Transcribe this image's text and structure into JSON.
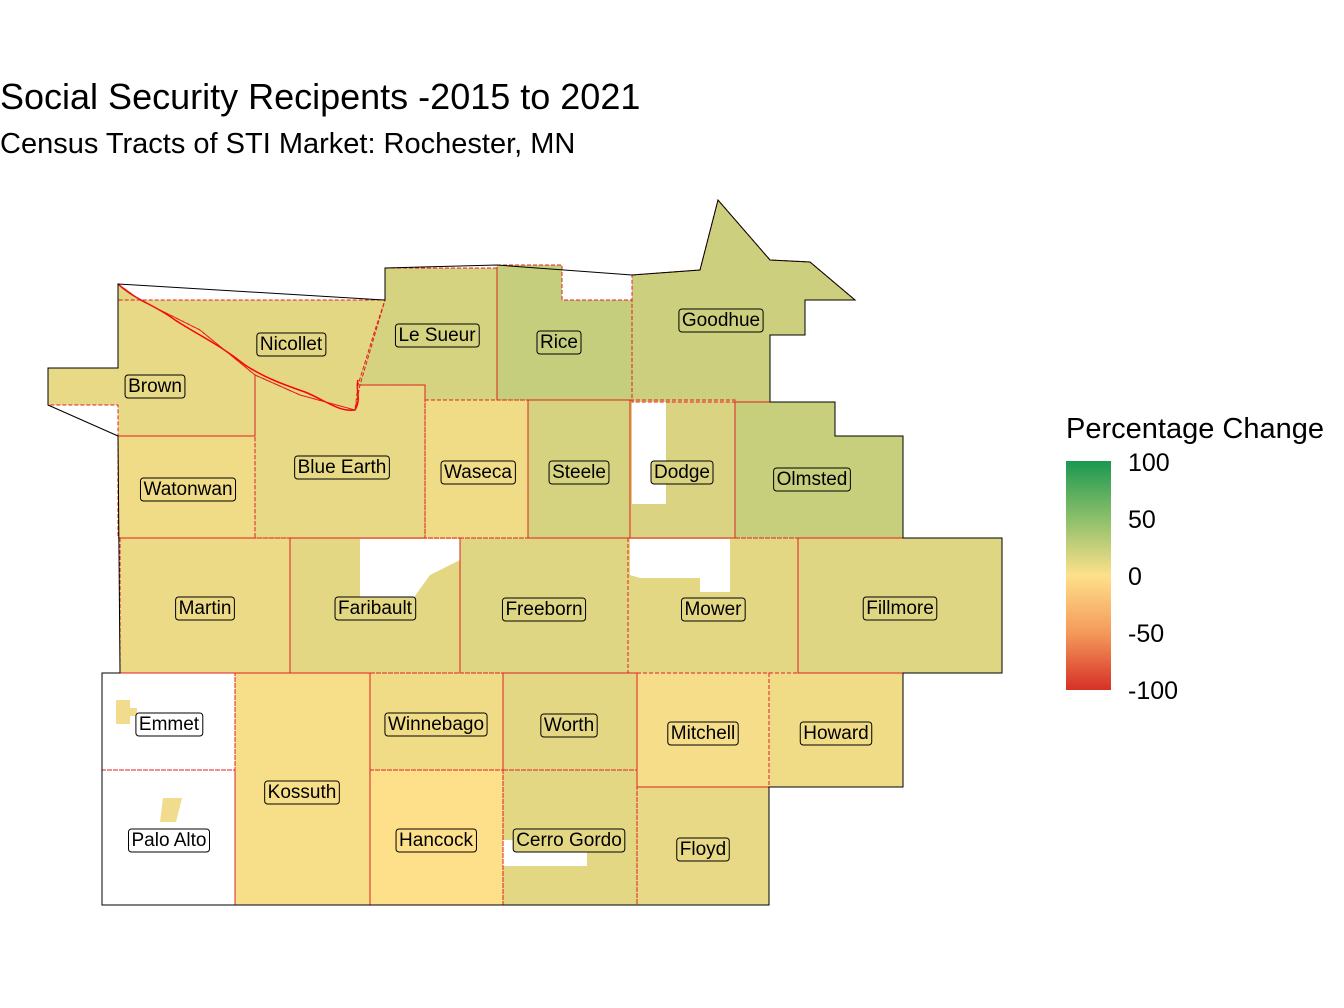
{
  "title": "Social Security Recipents -2015 to 2021",
  "subtitle": "Census Tracts of STI Market: Rochester, MN",
  "legend": {
    "title": "Percentage Change",
    "ticks": [
      "100",
      "50",
      "0",
      "-50",
      "-100"
    ],
    "colors": {
      "high": "#1a9850",
      "mid": "#fee08b",
      "low": "#d73027"
    },
    "range": [
      -100,
      100
    ]
  },
  "counties": [
    {
      "name": "Brown",
      "change": 10
    },
    {
      "name": "Nicollet",
      "change": 12
    },
    {
      "name": "Le Sueur",
      "change": 18
    },
    {
      "name": "Rice",
      "change": 25
    },
    {
      "name": "Goodhue",
      "change": 22
    },
    {
      "name": "Watonwan",
      "change": 6
    },
    {
      "name": "Blue Earth",
      "change": 10
    },
    {
      "name": "Waseca",
      "change": 6
    },
    {
      "name": "Steele",
      "change": 18
    },
    {
      "name": "Dodge",
      "change": 16
    },
    {
      "name": "Olmsted",
      "change": 24
    },
    {
      "name": "Martin",
      "change": 8
    },
    {
      "name": "Faribault",
      "change": 12
    },
    {
      "name": "Freeborn",
      "change": 14
    },
    {
      "name": "Mower",
      "change": 12
    },
    {
      "name": "Fillmore",
      "change": 14
    },
    {
      "name": "Emmet",
      "change": 8
    },
    {
      "name": "Kossuth",
      "change": 3
    },
    {
      "name": "Winnebago",
      "change": 6
    },
    {
      "name": "Worth",
      "change": 12
    },
    {
      "name": "Mitchell",
      "change": 4
    },
    {
      "name": "Howard",
      "change": 6
    },
    {
      "name": "Palo Alto",
      "change": 10
    },
    {
      "name": "Hancock",
      "change": 0
    },
    {
      "name": "Cerro Gordo",
      "change": 12
    },
    {
      "name": "Floyd",
      "change": 10
    }
  ]
}
